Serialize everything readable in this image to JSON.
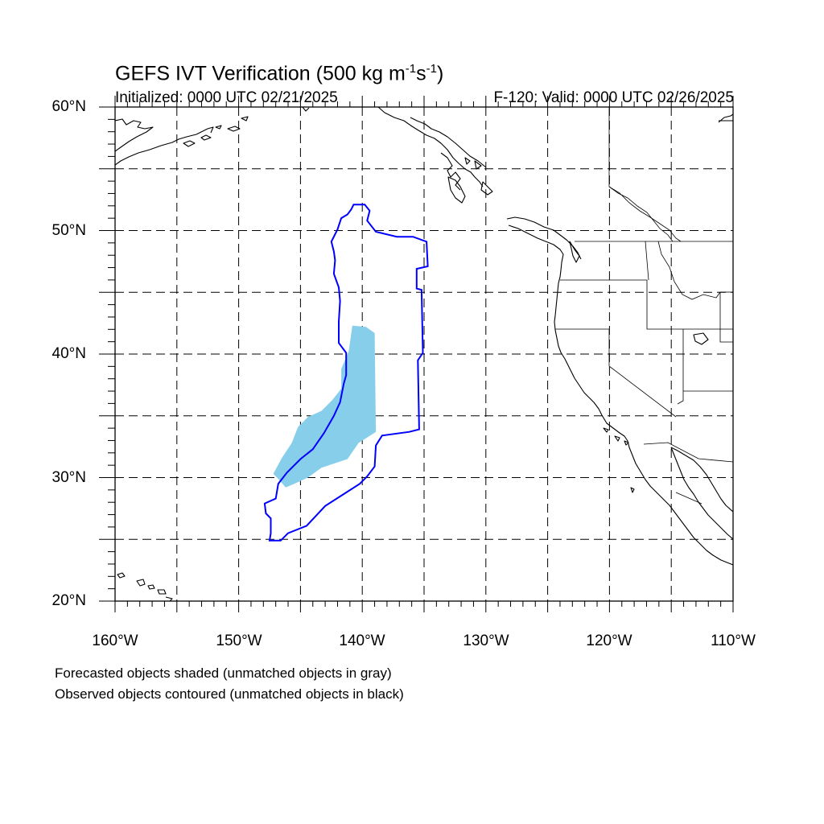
{
  "title": {
    "prefix": "GEFS IVT Verification (500 kg m",
    "exp1": "-1",
    "mid": "s",
    "exp2": "-1",
    "suffix": ")"
  },
  "initialized": "Initialized: 0000 UTC 02/21/2025",
  "valid": "F-120: Valid: 0000 UTC 02/26/2025",
  "lat_labels": [
    "60°N",
    "50°N",
    "40°N",
    "30°N",
    "20°N"
  ],
  "lon_labels": [
    "160°W",
    "150°W",
    "140°W",
    "130°W",
    "120°W",
    "110°W"
  ],
  "footnotes": [
    "Forecasted objects shaded (unmatched objects in gray)",
    "Observed objects contoured (unmatched objects in black)"
  ],
  "map_extent": {
    "lon_min": -160,
    "lon_max": -110,
    "lat_min": 20,
    "lat_max": 60
  },
  "colors": {
    "forecast_fill": "#87ceeb",
    "observed_contour": "#0000ff",
    "coastline": "#000000",
    "grid": "#000000"
  },
  "forecast_object": [
    [
      -140.8,
      42.3
    ],
    [
      -139.7,
      42.2
    ],
    [
      -139,
      41.7
    ],
    [
      -138.9,
      33.7
    ],
    [
      -140.3,
      32.8
    ],
    [
      -141.2,
      31.5
    ],
    [
      -143.3,
      30.8
    ],
    [
      -144.4,
      30
    ],
    [
      -145.5,
      29.5
    ],
    [
      -146.2,
      29.2
    ],
    [
      -146.8,
      29.9
    ],
    [
      -147.2,
      30.3
    ],
    [
      -146.5,
      31.6
    ],
    [
      -145.7,
      32.8
    ],
    [
      -145.2,
      34.1
    ],
    [
      -144.4,
      34.9
    ],
    [
      -143.3,
      35.4
    ],
    [
      -142.4,
      36.3
    ],
    [
      -141.7,
      37.2
    ],
    [
      -141.7,
      38.8
    ],
    [
      -141.1,
      40.2
    ]
  ],
  "observed_object": [
    [
      -140.7,
      52.1
    ],
    [
      -139.8,
      52.1
    ],
    [
      -139.4,
      51.6
    ],
    [
      -139.6,
      50.8
    ],
    [
      -138.9,
      49.9
    ],
    [
      -137.2,
      49.5
    ],
    [
      -135.9,
      49.5
    ],
    [
      -134.8,
      49.1
    ],
    [
      -134.7,
      47.1
    ],
    [
      -135.6,
      46.9
    ],
    [
      -135.6,
      45.3
    ],
    [
      -135.2,
      45.2
    ],
    [
      -135.1,
      40.1
    ],
    [
      -135.5,
      39.5
    ],
    [
      -135.4,
      33.9
    ],
    [
      -136.2,
      33.7
    ],
    [
      -138.4,
      33.4
    ],
    [
      -138.9,
      32.6
    ],
    [
      -139,
      30.9
    ],
    [
      -139.6,
      30.1
    ],
    [
      -140.2,
      29.5
    ],
    [
      -141.6,
      28.6
    ],
    [
      -143,
      27.7
    ],
    [
      -144.5,
      26.1
    ],
    [
      -146,
      25.5
    ],
    [
      -146.6,
      24.9
    ],
    [
      -147.5,
      24.9
    ],
    [
      -147.4,
      25.5
    ],
    [
      -147.4,
      26.7
    ],
    [
      -147.8,
      27.1
    ],
    [
      -147.9,
      27.9
    ],
    [
      -147,
      28.3
    ],
    [
      -146.8,
      29.5
    ],
    [
      -146.1,
      30.4
    ],
    [
      -145,
      31.5
    ],
    [
      -144,
      32.3
    ],
    [
      -143.1,
      33.6
    ],
    [
      -142.3,
      35
    ],
    [
      -141.8,
      36.1
    ],
    [
      -141.5,
      37.6
    ],
    [
      -141.3,
      38.3
    ],
    [
      -141.3,
      40.1
    ],
    [
      -141.9,
      40.9
    ],
    [
      -141.9,
      42.6
    ],
    [
      -141.8,
      44.3
    ],
    [
      -141.9,
      45.4
    ],
    [
      -142.3,
      46.5
    ],
    [
      -142.2,
      47.6
    ],
    [
      -142.3,
      48.3
    ],
    [
      -142.5,
      49.1
    ],
    [
      -142,
      50.1
    ],
    [
      -141.7,
      51
    ],
    [
      -141.2,
      51.3
    ],
    [
      -140.9,
      51.7
    ]
  ]
}
